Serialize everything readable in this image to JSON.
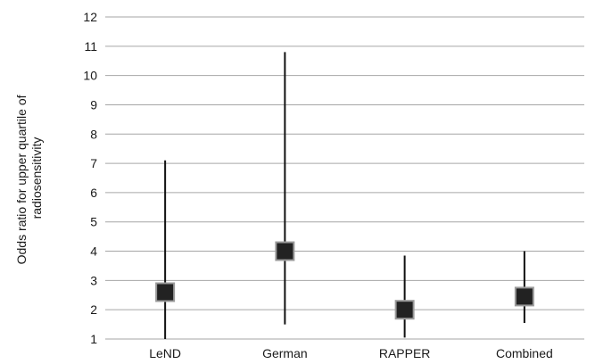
{
  "chart_data": {
    "type": "scatter",
    "title": "",
    "xlabel": "",
    "ylabel": "Odds ratio for upper quartile of radiosensitivity",
    "ylabel_lines": [
      "Odds ratio for upper quartile of",
      "radiosensitivity"
    ],
    "ylim": [
      1,
      12
    ],
    "yticks": [
      1,
      2,
      3,
      4,
      5,
      6,
      7,
      8,
      9,
      10,
      11,
      12
    ],
    "grid": true,
    "legend": "none",
    "categories": [
      "LeND",
      "German",
      "RAPPER",
      "Combined"
    ],
    "estimates": [
      2.6,
      4.0,
      2.0,
      2.45
    ],
    "ci_lower": [
      1.0,
      1.5,
      1.05,
      1.55
    ],
    "ci_upper": [
      7.1,
      10.8,
      3.85,
      4.0
    ],
    "marker": "square",
    "marker_color": "#222222"
  }
}
